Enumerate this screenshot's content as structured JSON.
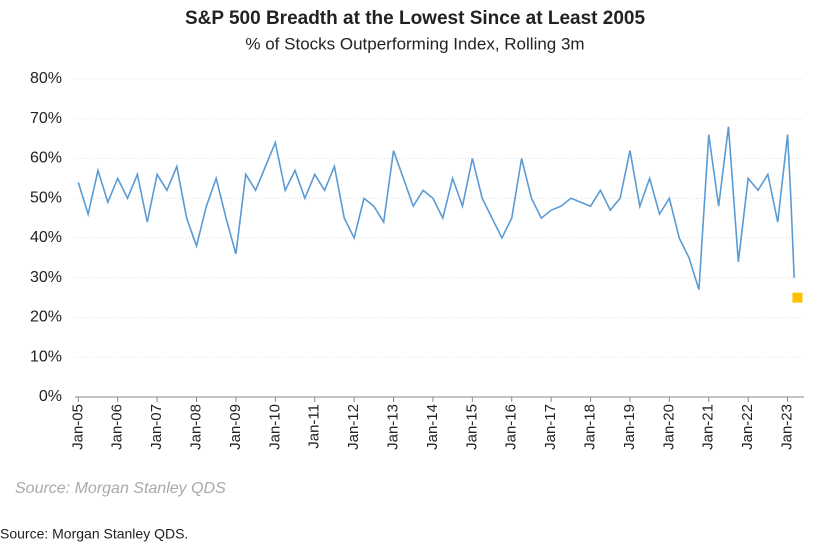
{
  "chart_data": {
    "type": "line",
    "title": "S&P 500 Breadth at the Lowest Since at Least 2005",
    "subtitle": "% of Stocks Outperforming  Index, Rolling 3m",
    "source_note": "Source: Morgan Stanley QDS",
    "footer": "Source: Morgan Stanley QDS.",
    "x": [
      "2005-01",
      "2005-04",
      "2005-07",
      "2005-10",
      "2006-01",
      "2006-04",
      "2006-07",
      "2006-10",
      "2007-01",
      "2007-04",
      "2007-07",
      "2007-10",
      "2008-01",
      "2008-04",
      "2008-07",
      "2008-10",
      "2009-01",
      "2009-04",
      "2009-07",
      "2009-10",
      "2010-01",
      "2010-04",
      "2010-07",
      "2010-10",
      "2011-01",
      "2011-04",
      "2011-07",
      "2011-10",
      "2012-01",
      "2012-04",
      "2012-07",
      "2012-10",
      "2013-01",
      "2013-04",
      "2013-07",
      "2013-10",
      "2014-01",
      "2014-04",
      "2014-07",
      "2014-10",
      "2015-01",
      "2015-04",
      "2015-07",
      "2015-10",
      "2016-01",
      "2016-04",
      "2016-07",
      "2016-10",
      "2017-01",
      "2017-04",
      "2017-07",
      "2017-10",
      "2018-01",
      "2018-04",
      "2018-07",
      "2018-10",
      "2019-01",
      "2019-04",
      "2019-07",
      "2019-10",
      "2020-01",
      "2020-04",
      "2020-07",
      "2020-10",
      "2021-01",
      "2021-04",
      "2021-07",
      "2021-10",
      "2022-01",
      "2022-04",
      "2022-07",
      "2022-10",
      "2023-01",
      "2023-02",
      "2023-03"
    ],
    "series": [
      {
        "name": "% of Stocks Outperforming Index",
        "color": "#5b9bd5",
        "values": [
          54,
          46,
          57,
          49,
          55,
          50,
          56,
          44,
          56,
          52,
          58,
          45,
          38,
          48,
          55,
          45,
          36,
          56,
          52,
          58,
          64,
          52,
          57,
          50,
          56,
          52,
          58,
          45,
          40,
          50,
          48,
          44,
          62,
          55,
          48,
          52,
          50,
          45,
          55,
          48,
          60,
          50,
          45,
          40,
          45,
          60,
          50,
          45,
          47,
          48,
          50,
          49,
          48,
          52,
          47,
          50,
          62,
          48,
          55,
          46,
          50,
          40,
          35,
          27,
          66,
          48,
          68,
          34,
          55,
          52,
          56,
          44,
          66,
          50,
          30
        ]
      }
    ],
    "highlight": {
      "x": "2023-04",
      "value": 25,
      "color": "#ffc000"
    },
    "xlim": [
      "2004-12",
      "2023-06"
    ],
    "xticks": [
      {
        "value": "2005-01",
        "label": "Jan-05"
      },
      {
        "value": "2006-01",
        "label": "Jan-06"
      },
      {
        "value": "2007-01",
        "label": "Jan-07"
      },
      {
        "value": "2008-01",
        "label": "Jan-08"
      },
      {
        "value": "2009-01",
        "label": "Jan-09"
      },
      {
        "value": "2010-01",
        "label": "Jan-10"
      },
      {
        "value": "2011-01",
        "label": "Jan-11"
      },
      {
        "value": "2012-01",
        "label": "Jan-12"
      },
      {
        "value": "2013-01",
        "label": "Jan-13"
      },
      {
        "value": "2014-01",
        "label": "Jan-14"
      },
      {
        "value": "2015-01",
        "label": "Jan-15"
      },
      {
        "value": "2016-01",
        "label": "Jan-16"
      },
      {
        "value": "2017-01",
        "label": "Jan-17"
      },
      {
        "value": "2018-01",
        "label": "Jan-18"
      },
      {
        "value": "2019-01",
        "label": "Jan-19"
      },
      {
        "value": "2020-01",
        "label": "Jan-20"
      },
      {
        "value": "2021-01",
        "label": "Jan-21"
      },
      {
        "value": "2022-01",
        "label": "Jan-22"
      },
      {
        "value": "2023-01",
        "label": "Jan-23"
      }
    ],
    "ylim": [
      0,
      80
    ],
    "yticks": [
      {
        "value": 0,
        "label": "0%"
      },
      {
        "value": 10,
        "label": "10%"
      },
      {
        "value": 20,
        "label": "20%"
      },
      {
        "value": 30,
        "label": "30%"
      },
      {
        "value": 40,
        "label": "40%"
      },
      {
        "value": 50,
        "label": "50%"
      },
      {
        "value": 60,
        "label": "60%"
      },
      {
        "value": 70,
        "label": "70%"
      },
      {
        "value": 80,
        "label": "80%"
      }
    ],
    "grid": true
  }
}
